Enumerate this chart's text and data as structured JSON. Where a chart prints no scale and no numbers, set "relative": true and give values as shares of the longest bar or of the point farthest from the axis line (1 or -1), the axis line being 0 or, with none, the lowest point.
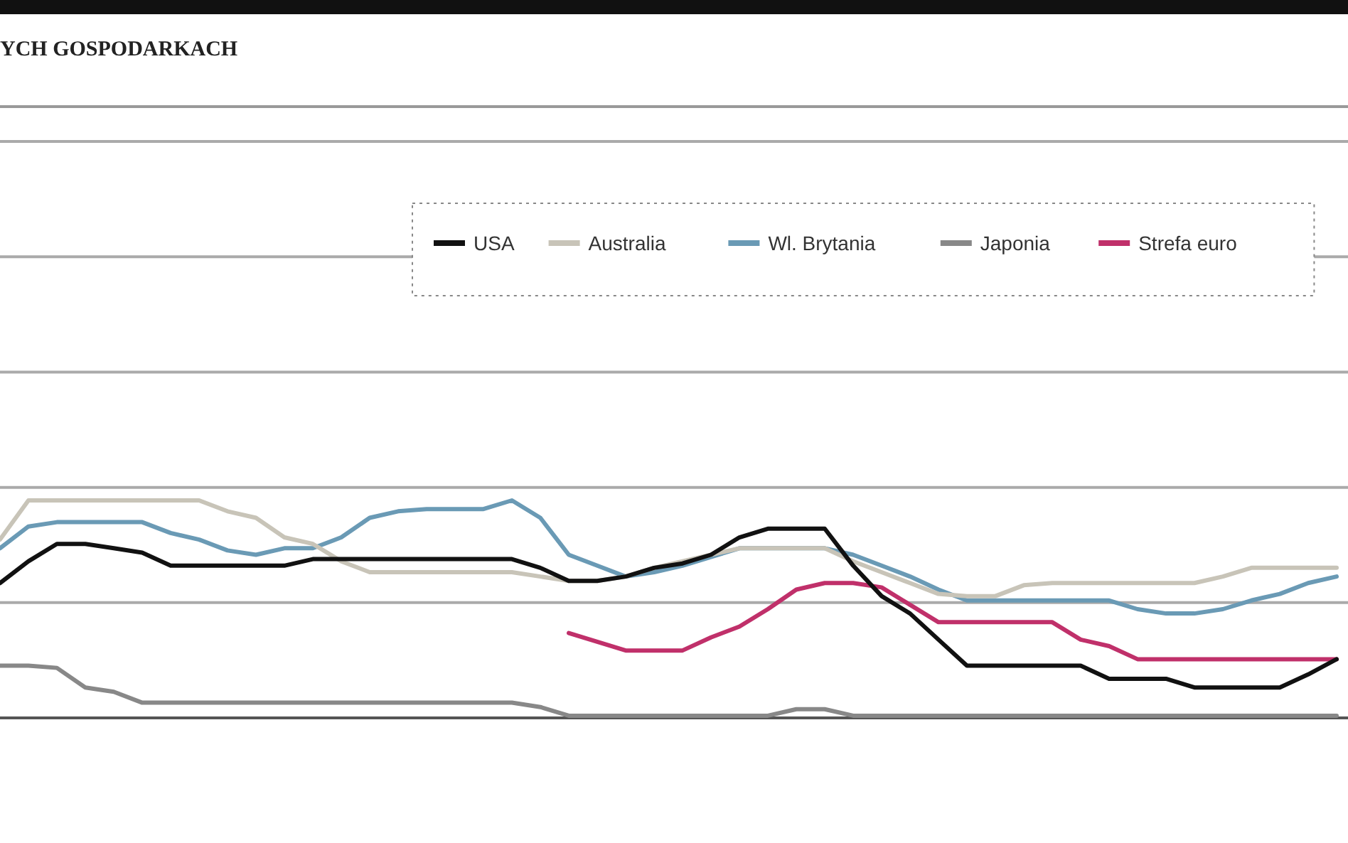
{
  "chart_data": {
    "type": "line",
    "title": "YCH GOSPODARKACH",
    "relative": true,
    "legend": "top",
    "line_style": "solid",
    "marker": "none",
    "ref_lines": [
      {
        "axis": "y",
        "value": 0.53,
        "color": "#aaaaaa"
      },
      {
        "axis": "y",
        "value": 1.06,
        "color": "#aaaaaa"
      },
      {
        "axis": "y",
        "value": 1.59,
        "color": "#aaaaaa"
      },
      {
        "axis": "y",
        "value": 2.12,
        "color": "#aaaaaa"
      },
      {
        "axis": "y",
        "value": 2.65,
        "color": "#aaaaaa"
      }
    ],
    "categories": [
      null,
      null,
      null,
      null,
      null,
      null,
      null,
      null,
      null,
      null,
      null,
      null,
      null,
      null,
      null,
      null,
      null,
      null,
      null,
      null,
      null,
      null,
      null,
      null,
      null,
      null,
      null,
      null,
      null,
      null,
      null,
      null,
      null,
      null,
      null,
      null,
      null,
      null,
      null,
      null,
      null,
      null,
      null,
      null,
      null,
      null,
      null,
      null
    ],
    "series": [
      {
        "name": "USA",
        "color": "#111111",
        "values": [
          0.62,
          0.72,
          0.8,
          0.8,
          0.78,
          0.76,
          0.7,
          0.7,
          0.7,
          0.7,
          0.7,
          0.73,
          0.73,
          0.73,
          0.73,
          0.73,
          0.73,
          0.73,
          0.73,
          0.69,
          0.63,
          0.63,
          0.65,
          0.69,
          0.71,
          0.75,
          0.83,
          0.87,
          0.87,
          0.87,
          0.7,
          0.56,
          0.48,
          0.36,
          0.24,
          0.24,
          0.24,
          0.24,
          0.24,
          0.18,
          0.18,
          0.18,
          0.14,
          0.14,
          0.14,
          0.14,
          0.2,
          0.27
        ]
      },
      {
        "name": "Australia",
        "color": "#c8c4b8",
        "values": [
          0.82,
          1,
          1,
          1,
          1,
          1,
          1,
          1,
          0.95,
          0.92,
          0.83,
          0.8,
          0.72,
          0.67,
          0.67,
          0.67,
          0.67,
          0.67,
          0.67,
          0.65,
          0.63,
          0.63,
          0.65,
          0.69,
          0.72,
          0.75,
          0.78,
          0.78,
          0.78,
          0.78,
          0.72,
          0.67,
          0.62,
          0.57,
          0.56,
          0.56,
          0.61,
          0.62,
          0.62,
          0.62,
          0.62,
          0.62,
          0.62,
          0.65,
          0.69,
          0.69,
          0.69,
          0.69
        ]
      },
      {
        "name": "Wl. Brytania",
        "color": "#6a9ab5",
        "values": [
          0.78,
          0.88,
          0.9,
          0.9,
          0.9,
          0.9,
          0.85,
          0.82,
          0.77,
          0.75,
          0.78,
          0.78,
          0.83,
          0.92,
          0.95,
          0.96,
          0.96,
          0.96,
          1,
          0.92,
          0.75,
          0.7,
          0.65,
          0.67,
          0.7,
          0.74,
          0.78,
          0.78,
          0.78,
          0.78,
          0.75,
          0.7,
          0.65,
          0.59,
          0.54,
          0.54,
          0.54,
          0.54,
          0.54,
          0.54,
          0.5,
          0.48,
          0.48,
          0.5,
          0.54,
          0.57,
          0.62,
          0.65
        ]
      },
      {
        "name": "Japonia",
        "color": "#888888",
        "values": [
          0.24,
          0.24,
          0.23,
          0.14,
          0.12,
          0.07,
          0.07,
          0.07,
          0.07,
          0.07,
          0.07,
          0.07,
          0.07,
          0.07,
          0.07,
          0.07,
          0.07,
          0.07,
          0.07,
          0.05,
          0.01,
          0.01,
          0.01,
          0.01,
          0.01,
          0.01,
          0.01,
          0.01,
          0.04,
          0.04,
          0.01,
          0.01,
          0.01,
          0.01,
          0.01,
          0.01,
          0.01,
          0.01,
          0.01,
          0.01,
          0.01,
          0.01,
          0.01,
          0.01,
          0.01,
          0.01,
          0.01,
          0.01
        ]
      },
      {
        "name": "Strefa euro",
        "color": "#c0306a",
        "values": [
          null,
          null,
          null,
          null,
          null,
          null,
          null,
          null,
          null,
          null,
          null,
          null,
          null,
          null,
          null,
          null,
          null,
          null,
          null,
          null,
          0.39,
          0.35,
          0.31,
          0.31,
          0.31,
          0.37,
          0.42,
          0.5,
          0.59,
          0.62,
          0.62,
          0.6,
          0.52,
          0.44,
          0.44,
          0.44,
          0.44,
          0.44,
          0.36,
          0.33,
          0.27,
          0.27,
          0.27,
          0.27,
          0.27,
          0.27,
          0.27,
          0.27
        ]
      }
    ]
  }
}
